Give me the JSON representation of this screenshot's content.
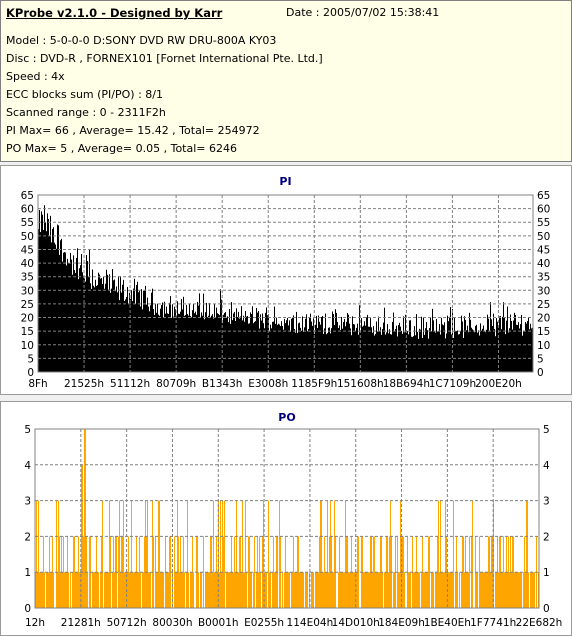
{
  "header": {
    "app_title": "KProbe v2.1.0 - Designed by Karr",
    "date": "Date : 2005/07/02 15:38:41",
    "lines": [
      "Model : 5-0-0-0 D:SONY     DVD RW DRU-800A  KY03",
      "Disc : DVD-R , FORNEX101 [Fornet International Pte. Ltd.]",
      "Speed : 4x",
      "ECC blocks sum (PI/PO) : 8/1",
      "Scanned range : 0 - 2311F2h",
      "PI Max= 66 , Average= 15.42 , Total= 254972",
      "PO Max= 5 , Average= 0.05 , Total= 6246"
    ]
  },
  "chart_data": [
    {
      "type": "bar",
      "title": "PI",
      "ylim": [
        0,
        65
      ],
      "yticks": [
        0,
        5,
        10,
        15,
        20,
        25,
        30,
        35,
        40,
        45,
        50,
        55,
        60,
        65
      ],
      "xticks": [
        "8Fh",
        "21525h",
        "51112h",
        "80709h",
        "B1343h",
        "E3008h",
        "1185F9h",
        "151608h",
        "18B694h",
        "1C7109h",
        "200E20h"
      ],
      "grid": true,
      "color": "#000000",
      "profile": {
        "x": [
          0,
          1,
          2,
          3,
          5,
          8,
          12,
          16,
          20,
          25,
          30,
          35,
          40,
          45,
          50,
          55,
          60,
          70,
          80,
          90,
          100
        ],
        "max": [
          58,
          63,
          60,
          55,
          50,
          45,
          40,
          36,
          33,
          28,
          27,
          27,
          24,
          24,
          22,
          22,
          22,
          21,
          20,
          22,
          23
        ],
        "mean": [
          48,
          52,
          50,
          45,
          40,
          34,
          30,
          27,
          25,
          21,
          20,
          19,
          18,
          17,
          16,
          15,
          15,
          14,
          13,
          14,
          15
        ]
      }
    },
    {
      "type": "bar",
      "title": "PO",
      "ylim": [
        0,
        5
      ],
      "yticks": [
        0,
        1,
        2,
        3,
        4,
        5
      ],
      "xticks": [
        "12h",
        "21281h",
        "50712h",
        "80030h",
        "B0001h",
        "E0255h",
        "114E04h",
        "14D010h",
        "184E09h",
        "1BE40Eh",
        "1F7741h",
        "22E682h"
      ],
      "grid": true,
      "color": "#ffa500",
      "profile": {
        "levels": [
          0,
          1,
          2,
          3
        ],
        "probabilities": [
          0.12,
          0.55,
          0.25,
          0.08
        ],
        "peaks": [
          {
            "x": 9.8,
            "value": 5
          },
          {
            "x": 9.3,
            "value": 4
          },
          {
            "x": 97.5,
            "value": 3
          }
        ]
      }
    }
  ]
}
